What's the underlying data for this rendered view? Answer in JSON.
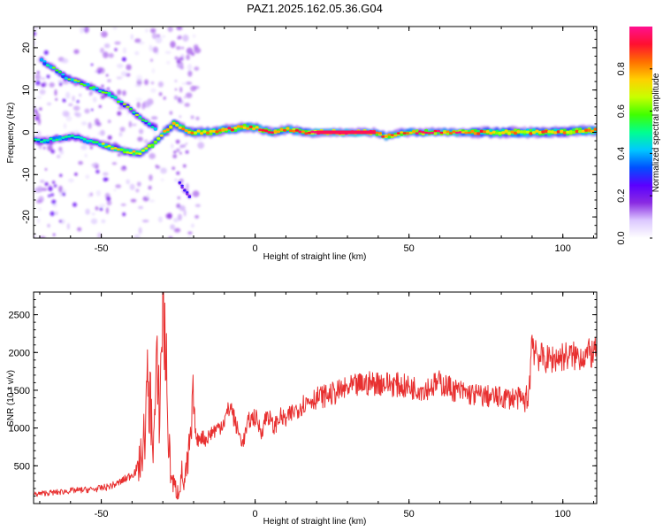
{
  "title": "PAZ1.2025.162.05.36.G04",
  "chart_data": [
    {
      "type": "heatmap",
      "xlabel": "Height of straight line (km)",
      "ylabel": "Frequency (Hz)",
      "xlim": [
        -72,
        111
      ],
      "ylim": [
        -25,
        25
      ],
      "xticks": [
        -50,
        0,
        50,
        100
      ],
      "yticks": [
        -20,
        -10,
        0,
        10,
        20
      ],
      "colorbar": {
        "label": "Normalized spectral amplitude",
        "range": [
          0,
          1
        ],
        "ticks": [
          "0.0",
          "0.2",
          "0.4",
          "0.6",
          "0.8"
        ],
        "colors": [
          "#ffffff",
          "#dcc8ff",
          "#8a2be2",
          "#5a00ff",
          "#0050ff",
          "#00c8ff",
          "#00ff90",
          "#40ff00",
          "#c8ff00",
          "#ffd000",
          "#ff7000",
          "#ff1030",
          "#ff1090"
        ]
      },
      "ridge_main": [
        {
          "x": -69,
          "f": -2
        },
        {
          "x": -60,
          "f": -1
        },
        {
          "x": -50,
          "f": -3
        },
        {
          "x": -43,
          "f": -4.5
        },
        {
          "x": -38,
          "f": -5
        },
        {
          "x": -34,
          "f": -3
        },
        {
          "x": -30,
          "f": 0
        },
        {
          "x": -27,
          "f": 2
        },
        {
          "x": -22,
          "f": 0
        },
        {
          "x": -15,
          "f": 0
        },
        {
          "x": -5,
          "f": 1.2
        },
        {
          "x": 0,
          "f": 1
        },
        {
          "x": 5,
          "f": 0
        },
        {
          "x": 10,
          "f": 0.8
        },
        {
          "x": 15,
          "f": 0
        },
        {
          "x": 20,
          "f": 0
        },
        {
          "x": 30,
          "f": 0
        },
        {
          "x": 38,
          "f": 0
        },
        {
          "x": 42,
          "f": -1
        },
        {
          "x": 48,
          "f": 0
        },
        {
          "x": 60,
          "f": 0
        },
        {
          "x": 70,
          "f": 0
        },
        {
          "x": 80,
          "f": 0
        },
        {
          "x": 90,
          "f": 0
        },
        {
          "x": 100,
          "f": 0
        },
        {
          "x": 111,
          "f": 0.5
        }
      ],
      "ridge_upper": [
        {
          "x": -70,
          "f": 17
        },
        {
          "x": -62,
          "f": 13
        },
        {
          "x": -55,
          "f": 11
        },
        {
          "x": -48,
          "f": 9
        },
        {
          "x": -42,
          "f": 6
        },
        {
          "x": -37,
          "f": 3
        },
        {
          "x": -33,
          "f": 1
        }
      ],
      "branch_low": [
        {
          "x": -25,
          "f": -12
        },
        {
          "x": -23,
          "f": -14
        },
        {
          "x": -21,
          "f": -16
        }
      ]
    },
    {
      "type": "line",
      "xlabel": "Height of straight line (km)",
      "ylabel": "SNR (10 * v/v)",
      "xlim": [
        -72,
        111
      ],
      "ylim": [
        0,
        2800
      ],
      "xticks": [
        -50,
        0,
        50,
        100
      ],
      "yticks": [
        500,
        1000,
        1500,
        2000,
        2500
      ],
      "line_color": "#e83030",
      "series": [
        {
          "x": [
            -72,
            -68,
            -64,
            -60,
            -56,
            -52,
            -48,
            -45,
            -42,
            -39,
            -37,
            -36,
            -35,
            -34,
            -33,
            -32,
            -31,
            -30,
            -29,
            -28,
            -27,
            -26,
            -25,
            -24,
            -23,
            -22,
            -21,
            -20,
            -19,
            -18,
            -16,
            -14,
            -12,
            -10,
            -8,
            -6,
            -4,
            -2,
            0,
            2,
            4,
            6,
            8,
            10,
            12,
            15,
            18,
            20,
            25,
            30,
            35,
            40,
            45,
            50,
            55,
            60,
            65,
            70,
            75,
            80,
            85,
            88,
            89,
            90,
            92,
            95,
            100,
            105,
            111
          ],
          "y": [
            120,
            140,
            150,
            170,
            180,
            190,
            220,
            260,
            330,
            420,
            600,
            900,
            1500,
            1300,
            800,
            1700,
            1200,
            2750,
            1900,
            700,
            300,
            200,
            150,
            400,
            250,
            500,
            800,
            1300,
            800,
            900,
            850,
            950,
            1000,
            1100,
            1300,
            1000,
            800,
            1100,
            1150,
            950,
            1200,
            1000,
            1150,
            1100,
            1200,
            1300,
            1380,
            1400,
            1450,
            1520,
            1580,
            1600,
            1580,
            1540,
            1520,
            1600,
            1500,
            1450,
            1420,
            1400,
            1400,
            1350,
            1500,
            2200,
            1950,
            1900,
            1950,
            1950,
            2000
          ]
        }
      ]
    }
  ]
}
